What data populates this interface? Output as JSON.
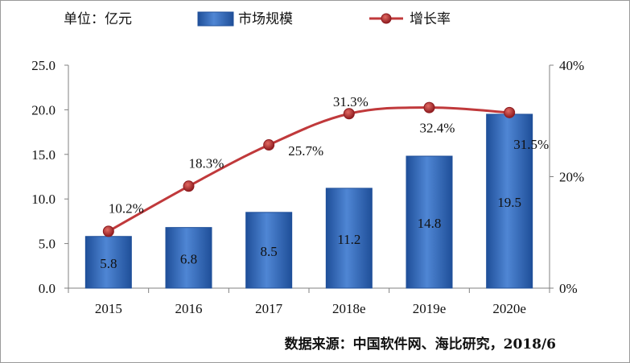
{
  "chart_data": {
    "type": "bar",
    "unit_label": "单位：亿元",
    "categories": [
      "2015",
      "2016",
      "2017",
      "2018e",
      "2019e",
      "2020e"
    ],
    "series": [
      {
        "name": "市场规模",
        "type": "bar",
        "axis": "left",
        "values": [
          5.8,
          6.8,
          8.5,
          11.2,
          14.8,
          19.5
        ]
      },
      {
        "name": "增长率",
        "type": "line",
        "axis": "right",
        "values": [
          10.2,
          18.3,
          25.7,
          31.3,
          32.4,
          31.5
        ]
      }
    ],
    "bar_labels": [
      "5.8",
      "6.8",
      "8.5",
      "11.2",
      "14.8",
      "19.5"
    ],
    "rate_labels": [
      "10.2%",
      "18.3%",
      "25.7%",
      "31.3%",
      "32.4%",
      "31.5%"
    ],
    "y_left": {
      "min": 0,
      "max": 25,
      "ticks": [
        "0.0",
        "5.0",
        "10.0",
        "15.0",
        "20.0",
        "25.0"
      ]
    },
    "y_right": {
      "min": 0,
      "max": 40,
      "ticks": [
        "0%",
        "20%",
        "40%"
      ]
    },
    "grid": false,
    "legend": "top",
    "colors": {
      "bar": "#3a6fbf",
      "bar_dark": "#1f4f99",
      "line": "#c0393b",
      "marker": "#a82226"
    },
    "source": "数据来源：中国软件网、海比研究，2018/6"
  }
}
